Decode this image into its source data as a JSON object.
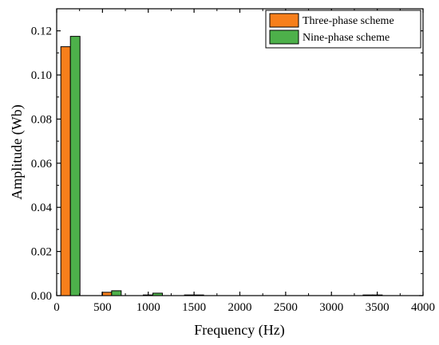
{
  "chart_data": {
    "type": "bar",
    "title": "",
    "xlabel": "Frequency (Hz)",
    "ylabel": "Amplitude (Wb)",
    "xlim": [
      0,
      4000
    ],
    "ylim": [
      0,
      0.13
    ],
    "x_ticks": [
      "0",
      "500",
      "1000",
      "1500",
      "2000",
      "2500",
      "3000",
      "3500",
      "4000"
    ],
    "y_ticks": [
      "0.00",
      "0.02",
      "0.04",
      "0.06",
      "0.08",
      "0.10",
      "0.12"
    ],
    "x_tick_values": [
      0,
      500,
      1000,
      1500,
      2000,
      2500,
      3000,
      3500,
      4000
    ],
    "y_tick_values": [
      0,
      0.02,
      0.04,
      0.06,
      0.08,
      0.1,
      0.12
    ],
    "frequencies": [
      150,
      600,
      1050,
      1500,
      3450
    ],
    "series": [
      {
        "name": "Three-phase scheme",
        "color": "#f77f1b",
        "values": [
          0.1128,
          0.0015,
          0.0003,
          0.0003,
          0.0002
        ]
      },
      {
        "name": "Nine-phase scheme",
        "color": "#4db04a",
        "values": [
          0.1175,
          0.0022,
          0.0011,
          0.0002,
          0.0001
        ]
      }
    ],
    "grid": false,
    "legend_position": "top-right"
  }
}
